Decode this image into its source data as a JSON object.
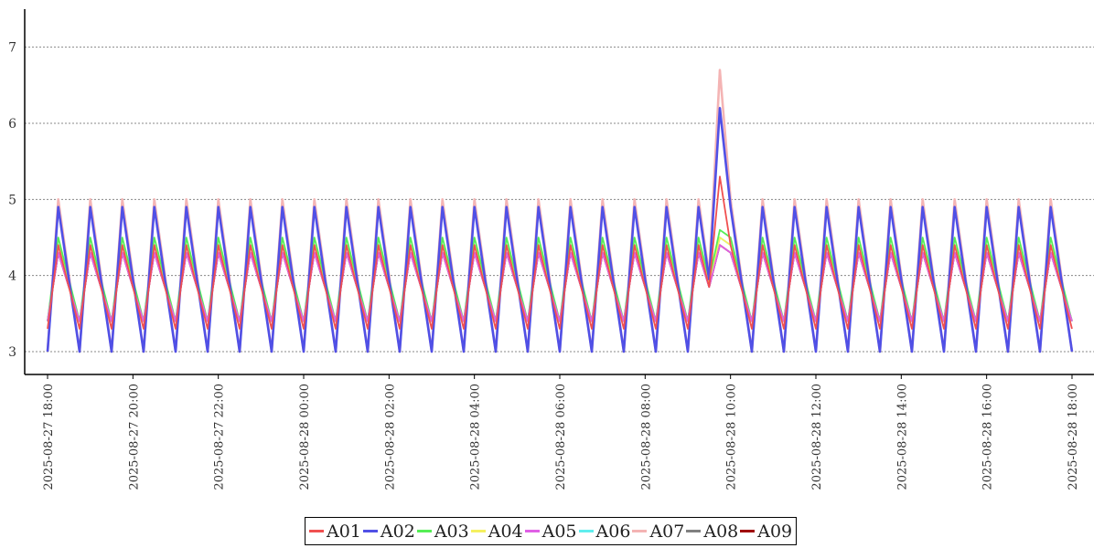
{
  "chart_data": {
    "type": "line",
    "title": "",
    "xlabel": "",
    "ylabel": "",
    "ylim": [
      2.7,
      7.5
    ],
    "yticks": [
      "3",
      "4",
      "5",
      "6",
      "7"
    ],
    "ytick_values": [
      3,
      4,
      5,
      6,
      7
    ],
    "grid": "horizontal dotted",
    "legend_position": "bottom-center",
    "x_start": "2025-08-27 18:00",
    "x_end": "2025-08-28 18:00",
    "xticks": [
      "2025-08-27  18:00",
      "2025-08-27  20:00",
      "2025-08-27  22:00",
      "2025-08-28  00:00",
      "2025-08-28  02:00",
      "2025-08-28  04:00",
      "2025-08-28  06:00",
      "2025-08-28  08:00",
      "2025-08-28  10:00",
      "2025-08-28  12:00",
      "2025-08-28  14:00",
      "2025-08-28  16:00",
      "2025-08-28  18:00"
    ],
    "series": [
      {
        "name": "A01",
        "color": "#f05050",
        "low": 3.3,
        "high": 4.4,
        "spike": 5.3
      },
      {
        "name": "A02",
        "color": "#5050e6",
        "low": 3.0,
        "high": 4.9,
        "spike": 6.2
      },
      {
        "name": "A03",
        "color": "#55ee55",
        "low": 3.4,
        "high": 4.5,
        "spike": 4.6
      },
      {
        "name": "A04",
        "color": "#f5f060",
        "low": 3.4,
        "high": 4.4,
        "spike": 4.5
      },
      {
        "name": "A05",
        "color": "#e060e6",
        "low": 3.4,
        "high": 4.3,
        "spike": 4.4
      },
      {
        "name": "A06",
        "color": "#60eeee",
        "low": 3.4,
        "high": 4.4,
        "spike": 4.5
      },
      {
        "name": "A07",
        "color": "#f4b4b4",
        "low": 3.0,
        "high": 5.0,
        "spike": 6.7
      },
      {
        "name": "A08",
        "color": "#808080",
        "low": 3.4,
        "high": 4.3,
        "spike": 4.4
      },
      {
        "name": "A09",
        "color": "#a00000",
        "low": 3.4,
        "high": 4.3,
        "spike": 4.4
      }
    ]
  },
  "legend": {
    "items": [
      {
        "label": "A01",
        "color": "#f05050"
      },
      {
        "label": "A02",
        "color": "#5050e6"
      },
      {
        "label": "A03",
        "color": "#55ee55"
      },
      {
        "label": "A04",
        "color": "#f5f060"
      },
      {
        "label": "A05",
        "color": "#e060e6"
      },
      {
        "label": "A06",
        "color": "#60eeee"
      },
      {
        "label": "A07",
        "color": "#f4b4b4"
      },
      {
        "label": "A08",
        "color": "#808080"
      },
      {
        "label": "A09",
        "color": "#a00000"
      }
    ]
  }
}
